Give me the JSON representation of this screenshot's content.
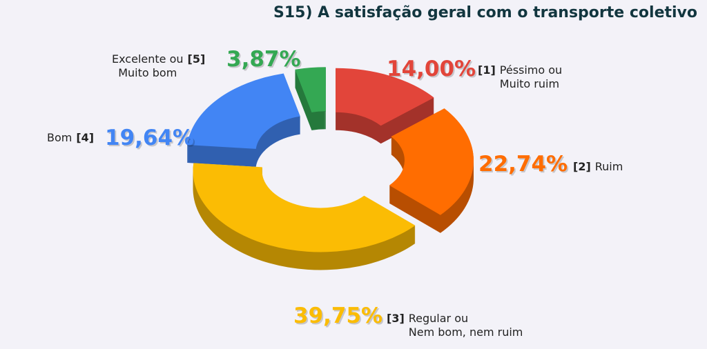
{
  "chart_data": {
    "type": "donut",
    "title": "S15) A satisfação geral com o transporte coletivo",
    "codes": [
      "[1]",
      "[2]",
      "[3]",
      "[4]",
      "[5]"
    ],
    "categories": [
      "Péssimo ou\nMuito ruim",
      "Ruim",
      "Regular ou\nNem bom, nem ruim",
      "Bom",
      "Excelente ou\nMuito bom"
    ],
    "values": [
      14.0,
      22.74,
      39.75,
      19.64,
      3.87
    ],
    "value_labels": [
      "14,00%",
      "22,74%",
      "39,75%",
      "19,64%",
      "3,87%"
    ],
    "colors": [
      "#e2453a",
      "#ff6d01",
      "#fbbc04",
      "#4285f4",
      "#34a853"
    ]
  }
}
